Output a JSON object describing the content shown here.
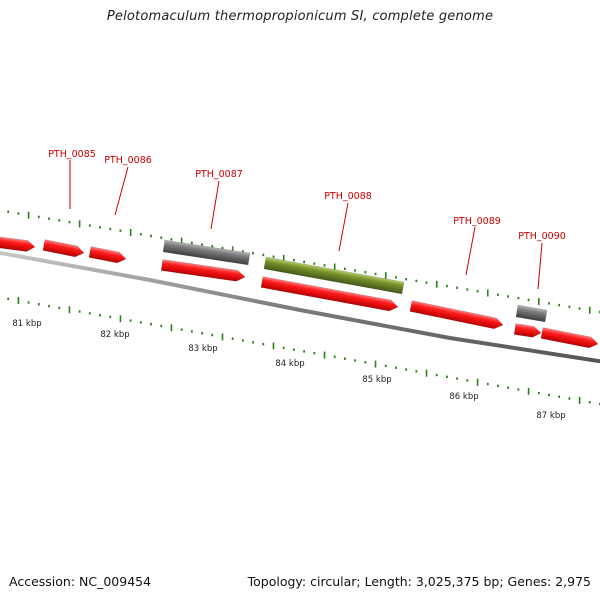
{
  "title": "Pelotomaculum thermopropionicum SI, complete genome",
  "footer": {
    "accession": "Accession: NC_009454",
    "summary": "Topology: circular; Length: 3,025,375 bp; Genes: 2,975"
  },
  "colors": {
    "cds": "#ff0000",
    "rna": "#6d6d6d",
    "pseudo": "#6e8a22",
    "tick": "#2e7d1e",
    "backbone": "#7a7a7a",
    "label": "#cc0000"
  },
  "gene_labels": [
    "PTH_0085",
    "PTH_0086",
    "PTH_0087",
    "PTH_0088",
    "PTH_0089",
    "PTH_0090"
  ],
  "kbp_labels": [
    "81 kbp",
    "82 kbp",
    "83 kbp",
    "84 kbp",
    "85 kbp",
    "86 kbp",
    "87 kbp"
  ]
}
